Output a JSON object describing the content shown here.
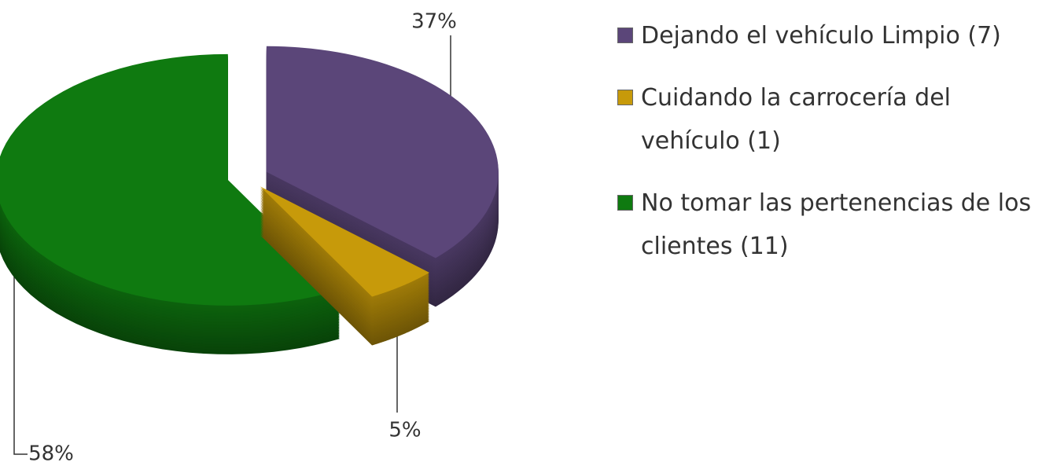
{
  "chart_data": {
    "type": "pie",
    "categories": [
      "Dejando el vehículo Limpio (7)",
      "Cuidando la carrocería del vehículo (1)",
      "No tomar las pertenencias de los clientes (11)"
    ],
    "values": [
      37,
      5,
      58
    ],
    "value_labels": [
      "37%",
      "5%",
      "58%"
    ],
    "colors": [
      "#5b4679",
      "#c79a0a",
      "#0f7a10"
    ],
    "legend": "right"
  }
}
